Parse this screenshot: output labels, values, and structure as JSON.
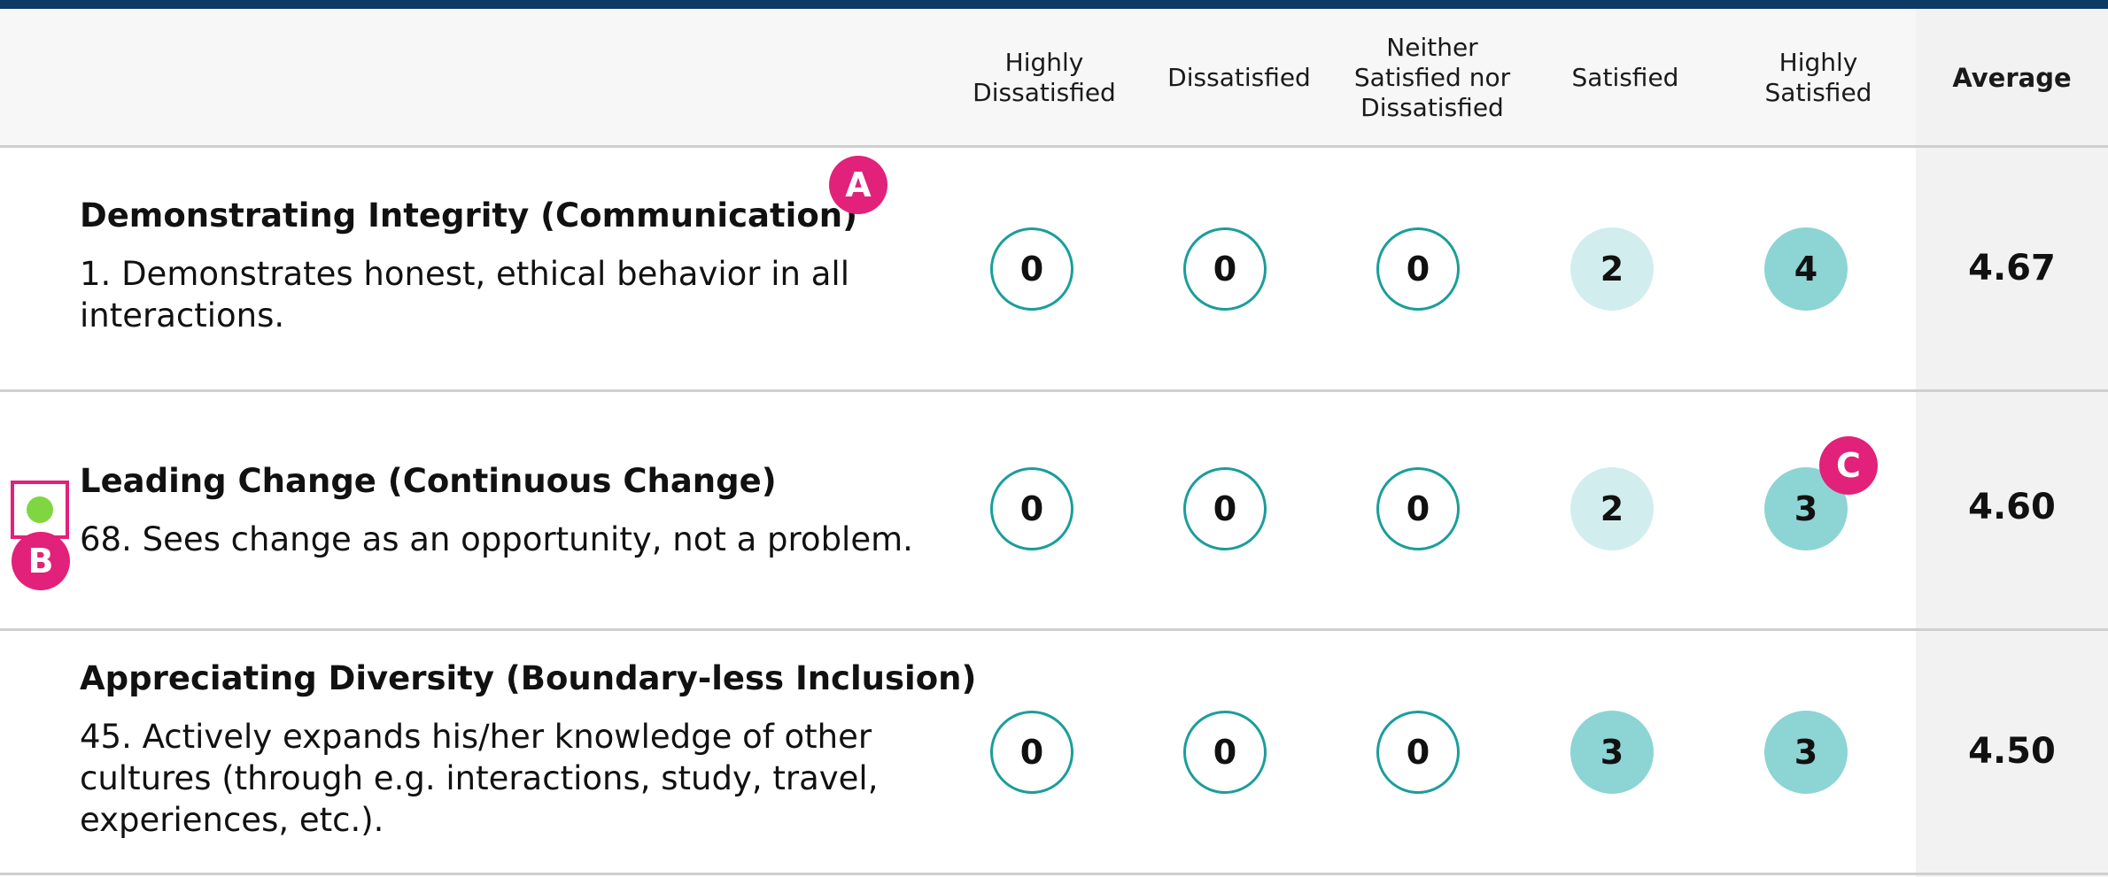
{
  "colors": {
    "accent_teal": "#1a9e9a",
    "light_fill": "#d2edee",
    "mid_fill": "#8dd4d4",
    "marker_pink": "#e2217a",
    "flag_green": "#7fd640",
    "top_bar": "#0d3b66"
  },
  "columns": {
    "highly_dissatisfied": [
      "Highly",
      "Dissatisfied"
    ],
    "dissatisfied": [
      "Dissatisfied"
    ],
    "neither": [
      "Neither",
      "Satisfied nor",
      "Dissatisfied"
    ],
    "satisfied": [
      "Satisfied"
    ],
    "highly_satisfied": [
      "Highly",
      "Satisfied"
    ],
    "average": "Average"
  },
  "rows": [
    {
      "title": "Demonstrating Integrity (Communication)",
      "text": "1. Demonstrates honest, ethical behavior in all interactions.",
      "counts": [
        "0",
        "0",
        "0",
        "2",
        "4"
      ],
      "average": "4.67"
    },
    {
      "title": "Leading Change (Continuous Change)",
      "text": "68. Sees change as an opportunity, not a problem.",
      "counts": [
        "0",
        "0",
        "0",
        "2",
        "3"
      ],
      "average": "4.60"
    },
    {
      "title": "Appreciating Diversity (Boundary-less Inclusion)",
      "text": "45. Actively expands his/her knowledge of other cultures (through e.g. interactions, study, travel, experiences, etc.).",
      "counts": [
        "0",
        "0",
        "0",
        "3",
        "3"
      ],
      "average": "4.50"
    }
  ],
  "markers": {
    "a": "A",
    "b": "B",
    "c": "C"
  }
}
